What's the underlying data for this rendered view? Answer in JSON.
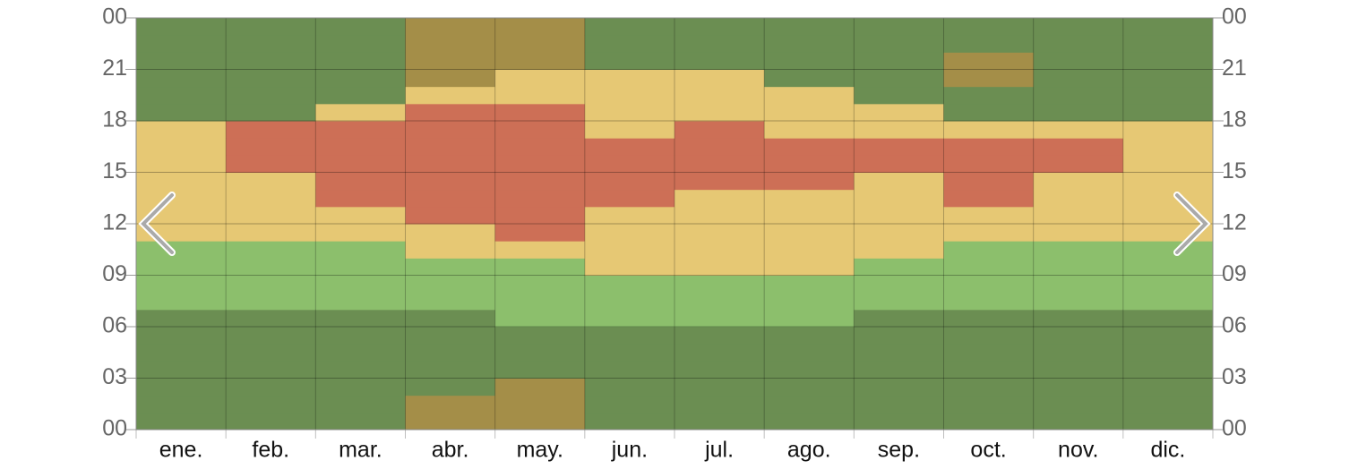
{
  "chart_data": {
    "type": "heatmap",
    "categories": [
      "ene.",
      "feb.",
      "mar.",
      "abr.",
      "may.",
      "jun.",
      "jul.",
      "ago.",
      "sep.",
      "oct.",
      "nov.",
      "dic."
    ],
    "ylim": [
      0,
      24
    ],
    "yticks": [
      {
        "value": 0,
        "label": "00"
      },
      {
        "value": 3,
        "label": "03"
      },
      {
        "value": 6,
        "label": "06"
      },
      {
        "value": 9,
        "label": "09"
      },
      12,
      15,
      18,
      21,
      {
        "value": 24,
        "label": "00"
      }
    ],
    "colors": [
      "#6b8e52",
      "#8cbf6c",
      "#e6c874",
      "#cd6f56",
      "#a48e48"
    ],
    "z": [
      [
        0,
        0,
        0,
        0,
        0,
        0,
        0,
        1,
        1,
        1,
        1,
        2,
        2,
        2,
        2,
        2,
        2,
        2,
        0,
        0,
        0,
        0,
        0,
        0
      ],
      [
        0,
        0,
        0,
        0,
        0,
        0,
        0,
        1,
        1,
        1,
        1,
        2,
        2,
        2,
        2,
        3,
        3,
        3,
        0,
        0,
        0,
        0,
        0,
        0
      ],
      [
        0,
        0,
        0,
        0,
        0,
        0,
        0,
        1,
        1,
        1,
        1,
        2,
        2,
        3,
        3,
        3,
        3,
        3,
        2,
        0,
        0,
        0,
        0,
        0
      ],
      [
        4,
        4,
        0,
        0,
        0,
        0,
        0,
        1,
        1,
        1,
        2,
        2,
        3,
        3,
        3,
        3,
        3,
        3,
        3,
        2,
        4,
        4,
        4,
        4
      ],
      [
        4,
        4,
        4,
        0,
        0,
        0,
        1,
        1,
        1,
        1,
        2,
        3,
        3,
        3,
        3,
        3,
        3,
        3,
        3,
        2,
        2,
        4,
        4,
        4
      ],
      [
        0,
        0,
        0,
        0,
        0,
        0,
        1,
        1,
        1,
        2,
        2,
        2,
        2,
        3,
        3,
        3,
        3,
        2,
        2,
        2,
        2,
        0,
        0,
        0
      ],
      [
        0,
        0,
        0,
        0,
        0,
        0,
        1,
        1,
        1,
        2,
        2,
        2,
        2,
        2,
        3,
        3,
        3,
        3,
        2,
        2,
        2,
        0,
        0,
        0
      ],
      [
        0,
        0,
        0,
        0,
        0,
        0,
        1,
        1,
        1,
        2,
        2,
        2,
        2,
        2,
        3,
        3,
        3,
        2,
        2,
        2,
        0,
        0,
        0,
        0
      ],
      [
        0,
        0,
        0,
        0,
        0,
        0,
        0,
        1,
        1,
        1,
        2,
        2,
        2,
        2,
        2,
        3,
        3,
        2,
        2,
        0,
        0,
        0,
        0,
        0
      ],
      [
        0,
        0,
        0,
        0,
        0,
        0,
        0,
        1,
        1,
        1,
        1,
        2,
        2,
        3,
        3,
        3,
        3,
        2,
        0,
        0,
        4,
        4,
        0,
        0
      ],
      [
        0,
        0,
        0,
        0,
        0,
        0,
        0,
        1,
        1,
        1,
        1,
        2,
        2,
        2,
        2,
        3,
        3,
        2,
        0,
        0,
        0,
        0,
        0,
        0
      ],
      [
        0,
        0,
        0,
        0,
        0,
        0,
        0,
        1,
        1,
        1,
        1,
        2,
        2,
        2,
        2,
        2,
        2,
        2,
        0,
        0,
        0,
        0,
        0,
        0
      ]
    ],
    "grid": true
  }
}
